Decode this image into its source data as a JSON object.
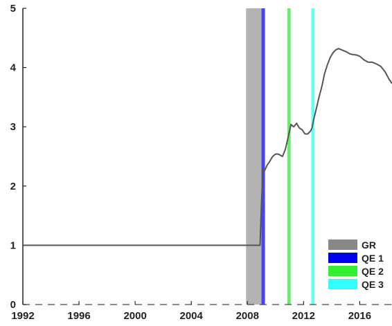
{
  "chart_data": {
    "type": "line",
    "title": "",
    "xlabel": "",
    "ylabel": "",
    "xlim": [
      1992,
      2018.3
    ],
    "ylim": [
      0,
      5
    ],
    "x_ticks": [
      1992,
      1996,
      2000,
      2004,
      2008,
      2012,
      2016
    ],
    "y_ticks": [
      0,
      1,
      2,
      3,
      4,
      5
    ],
    "grid": false,
    "legend_position": "bottom-right",
    "line_color": "#555555",
    "series": [
      {
        "x": [
          1992,
          2008.9,
          2009.0,
          2009.1,
          2009.2,
          2009.4,
          2009.6,
          2009.8,
          2010.0,
          2010.2,
          2010.5,
          2010.7,
          2010.9,
          2011.1,
          2011.3,
          2011.5,
          2011.7,
          2011.9,
          2012.1,
          2012.3,
          2012.5,
          2012.6,
          2012.7,
          2012.9,
          2013.1,
          2013.3,
          2013.5,
          2013.7,
          2013.9,
          2014.1,
          2014.3,
          2014.5,
          2014.7,
          2014.9,
          2015.1,
          2015.3,
          2015.5,
          2015.8,
          2016.0,
          2016.3,
          2016.6,
          2016.9,
          2017.2,
          2017.5,
          2017.8,
          2018.1,
          2018.3
        ],
        "y": [
          1.0,
          1.0,
          1.7,
          2.3,
          2.25,
          2.35,
          2.42,
          2.5,
          2.54,
          2.54,
          2.5,
          2.62,
          2.82,
          3.04,
          3.0,
          3.06,
          2.98,
          2.95,
          2.88,
          2.88,
          2.93,
          2.98,
          3.1,
          3.3,
          3.5,
          3.68,
          3.9,
          4.05,
          4.17,
          4.25,
          4.3,
          4.32,
          4.3,
          4.28,
          4.26,
          4.23,
          4.22,
          4.21,
          4.19,
          4.13,
          4.09,
          4.09,
          4.06,
          4.02,
          3.93,
          3.8,
          3.73
        ]
      }
    ],
    "bands": [
      {
        "name": "GR",
        "start": 2007.9,
        "end": 2009.0,
        "color": "#b3b3b3"
      },
      {
        "name": "QE 1",
        "start": 2009.0,
        "end": 2009.25,
        "color": "#4646ee"
      },
      {
        "name": "QE 2",
        "start": 2010.85,
        "end": 2011.08,
        "color": "#66ee66"
      },
      {
        "name": "QE 3",
        "start": 2012.55,
        "end": 2012.78,
        "color": "#66ffff"
      }
    ],
    "legend": [
      {
        "label": "GR",
        "color": "#888888"
      },
      {
        "label": "QE 1",
        "color": "#0000ee"
      },
      {
        "label": "QE 2",
        "color": "#33ee33"
      },
      {
        "label": "QE 3",
        "color": "#33ffff"
      }
    ]
  }
}
